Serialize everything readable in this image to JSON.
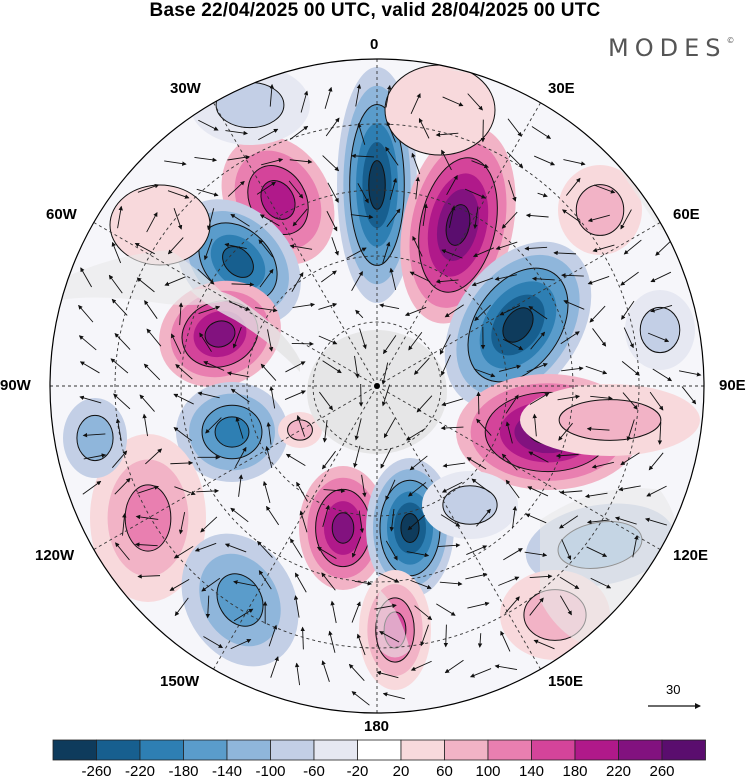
{
  "title": "Base 22/04/2025 00 UTC, valid 28/04/2025 00 UTC",
  "brand": "MODES",
  "brand_mark": "©",
  "meridian_labels": {
    "m0": "0",
    "e30": "30E",
    "e60": "60E",
    "e90": "90E",
    "e120": "120E",
    "e150": "150E",
    "m180": "180",
    "w150": "150W",
    "w120": "120W",
    "w90": "90W",
    "w60": "60W",
    "w30": "30W"
  },
  "vector_reference": "30",
  "colorbar": {
    "ticks": [
      "-260",
      "-220",
      "-180",
      "-140",
      "-100",
      "-60",
      "-20",
      "20",
      "60",
      "100",
      "140",
      "180",
      "220",
      "260"
    ],
    "colors": [
      "#0e3b5c",
      "#175f8f",
      "#2e7fb3",
      "#5a9ccb",
      "#8fb6db",
      "#c3cfe6",
      "#e6e8f2",
      "#ffffff",
      "#f8d9dc",
      "#f2b3c6",
      "#e97fb0",
      "#d4449a",
      "#b0198a",
      "#82127f",
      "#5a0d6e"
    ]
  },
  "map_features": {
    "center": "south-pole",
    "land_color": "#ececec",
    "graticule": "dashed"
  }
}
